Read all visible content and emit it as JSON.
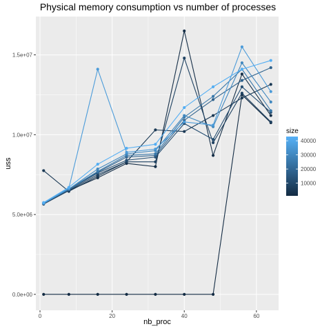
{
  "chart_data": {
    "type": "line",
    "title": "Physical memory consumption vs number of processes",
    "xlabel": "nb_proc",
    "ylabel": "uss",
    "xlim": [
      -1.15,
      66.15
    ],
    "ylim": [
      -1000000,
      17400000
    ],
    "x_ticks": [
      {
        "value": 0,
        "label": "0"
      },
      {
        "value": 20,
        "label": "20"
      },
      {
        "value": 40,
        "label": "40"
      },
      {
        "value": 60,
        "label": "60"
      }
    ],
    "y_ticks": [
      {
        "value": 0,
        "label": "0.0e+00"
      },
      {
        "value": 5000000,
        "label": "5.0e+06"
      },
      {
        "value": 10000000,
        "label": "1.0e+07"
      },
      {
        "value": 15000000,
        "label": "1.5e+07"
      }
    ],
    "x": [
      1,
      8,
      16,
      24,
      32,
      40,
      48,
      56,
      64
    ],
    "grid": true,
    "panel_background": "#ebebeb",
    "legend": {
      "title": "size",
      "position": "right",
      "min": 1000,
      "max": 43000,
      "labels": [
        {
          "value": 10000,
          "label": "10000"
        },
        {
          "value": 20000,
          "label": "20000"
        },
        {
          "value": 30000,
          "label": "30000"
        },
        {
          "value": 40000,
          "label": "40000"
        }
      ],
      "low_color": "#132B43",
      "high_color": "#56B1F7"
    },
    "series": [
      {
        "size": 1000,
        "values": [
          0,
          0,
          0,
          0,
          0,
          0,
          0,
          12500000,
          10750000
        ]
      },
      {
        "size": 2000,
        "values": [
          5700000,
          6500000,
          7300000,
          8200000,
          8000000,
          16500000,
          8700000,
          13800000,
          11200000
        ]
      },
      {
        "size": 5000,
        "values": [
          7750000,
          6450000,
          7400000,
          8300000,
          10300000,
          10200000,
          11200000,
          12300000,
          13150000
        ]
      },
      {
        "size": 8000,
        "values": [
          5650000,
          6500000,
          7500000,
          8300000,
          8300000,
          14800000,
          9500000,
          12600000,
          10800000
        ]
      },
      {
        "size": 12000,
        "values": [
          5700000,
          6550000,
          7600000,
          8400000,
          8600000,
          10700000,
          9700000,
          13000000,
          11400000
        ]
      },
      {
        "size": 18000,
        "values": [
          5700000,
          6550000,
          7650000,
          8600000,
          8700000,
          10900000,
          12200000,
          13400000,
          14200000
        ]
      },
      {
        "size": 25000,
        "values": [
          5700000,
          6600000,
          7700000,
          8700000,
          8800000,
          11100000,
          12400000,
          14100000,
          11500000
        ]
      },
      {
        "size": 30000,
        "values": [
          5700000,
          6600000,
          7850000,
          8800000,
          9000000,
          11200000,
          10500000,
          14500000,
          12050000
        ]
      },
      {
        "size": 36000,
        "values": [
          5700000,
          6650000,
          14100000,
          8900000,
          9100000,
          10800000,
          10600000,
          15500000,
          12700000
        ]
      },
      {
        "size": 42000,
        "values": [
          5750000,
          6700000,
          8150000,
          9150000,
          9400000,
          11700000,
          13000000,
          14100000,
          14650000
        ]
      }
    ]
  }
}
